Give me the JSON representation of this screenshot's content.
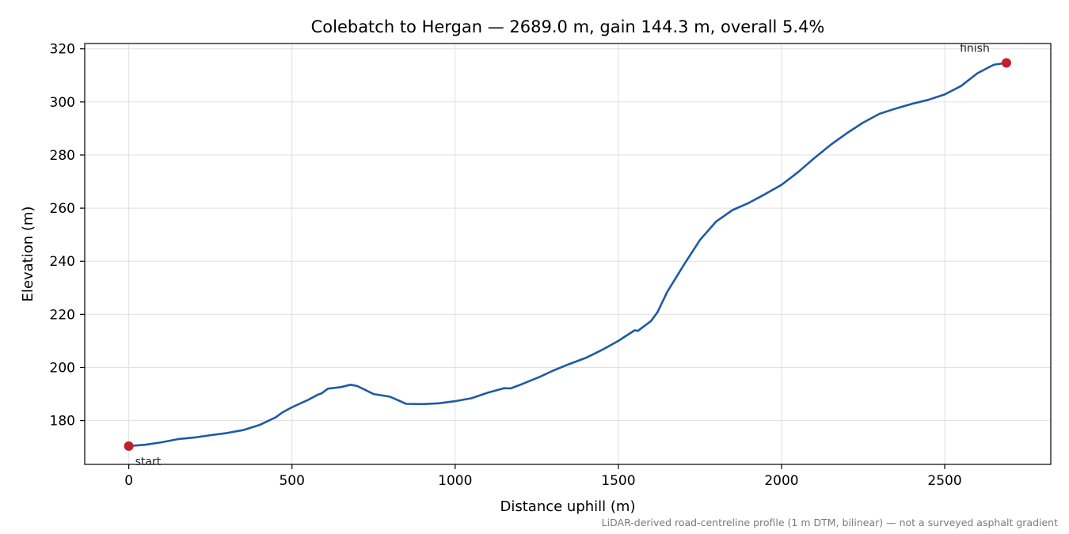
{
  "chart_data": {
    "type": "line",
    "title": "Colebatch to Hergan — 2689.0 m, gain 144.3 m, overall 5.4%",
    "xlabel": "Distance uphill (m)",
    "ylabel": "Elevation (m)",
    "xlim": [
      -135,
      2825
    ],
    "ylim": [
      163.5,
      322
    ],
    "xticks": [
      0,
      500,
      1000,
      1500,
      2000,
      2500
    ],
    "yticks": [
      180,
      200,
      220,
      240,
      260,
      280,
      300,
      320
    ],
    "grid": true,
    "colors": {
      "line": "#1f5aa6",
      "marker": "#c0202e",
      "grid": "#e0e0e0",
      "caption": "#7a7a7a"
    },
    "series": [
      {
        "x": [
          0,
          50,
          100,
          150,
          200,
          250,
          300,
          350,
          400,
          450,
          470,
          500,
          550,
          580,
          590,
          610,
          650,
          680,
          700,
          750,
          800,
          850,
          900,
          950,
          1000,
          1050,
          1100,
          1150,
          1170,
          1200,
          1250,
          1260,
          1300,
          1350,
          1400,
          1450,
          1500,
          1550,
          1560,
          1600,
          1620,
          1650,
          1700,
          1750,
          1800,
          1850,
          1900,
          1950,
          2000,
          2050,
          2100,
          2150,
          2200,
          2250,
          2300,
          2350,
          2400,
          2450,
          2500,
          2550,
          2600,
          2650,
          2689
        ],
        "y": [
          170.4,
          170.9,
          171.8,
          173.0,
          173.6,
          174.5,
          175.3,
          176.4,
          178.3,
          181.2,
          183.0,
          185.0,
          187.8,
          189.8,
          190.2,
          192.0,
          192.6,
          193.5,
          193.0,
          190.0,
          189.0,
          186.3,
          186.2,
          186.5,
          187.3,
          188.4,
          190.5,
          192.2,
          192.1,
          193.5,
          196.0,
          196.5,
          198.8,
          201.3,
          203.6,
          206.6,
          210.0,
          214.0,
          213.8,
          217.5,
          220.8,
          228.5,
          238.5,
          248.0,
          255.0,
          259.3,
          262.0,
          265.3,
          268.8,
          273.5,
          278.8,
          283.8,
          288.2,
          292.2,
          295.5,
          297.5,
          299.3,
          300.8,
          302.8,
          306.0,
          310.8,
          314.0,
          314.7
        ]
      }
    ],
    "annotations": [
      {
        "text": "start",
        "x": 0,
        "y": 170.4
      },
      {
        "text": "finish",
        "x": 2689,
        "y": 314.7
      }
    ],
    "caption": "LiDAR-derived road-centreline profile (1 m DTM, bilinear) — not a surveyed asphalt gradient"
  }
}
